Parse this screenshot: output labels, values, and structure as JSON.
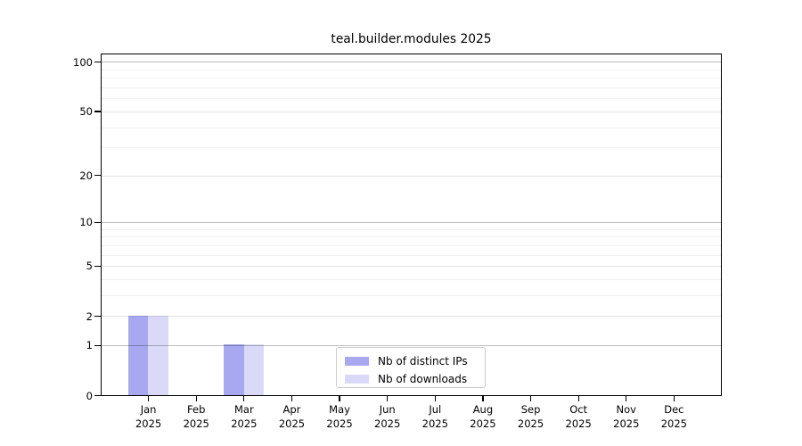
{
  "title": "teal.builder.modules 2025",
  "chart_data": {
    "type": "bar",
    "title": "teal.builder.modules 2025",
    "categories": [
      "Jan",
      "Feb",
      "Mar",
      "Apr",
      "May",
      "Jun",
      "Jul",
      "Aug",
      "Sep",
      "Oct",
      "Nov",
      "Dec"
    ],
    "category_year": "2025",
    "series": [
      {
        "name": "Nb of distinct IPs",
        "color": "#a8a8f0",
        "values": [
          2,
          0,
          1,
          0,
          0,
          0,
          0,
          0,
          0,
          0,
          0,
          0
        ]
      },
      {
        "name": "Nb of downloads",
        "color": "#dadaf8",
        "values": [
          2,
          0,
          1,
          0,
          0,
          0,
          0,
          0,
          0,
          0,
          0,
          0
        ]
      }
    ],
    "xlabel": "",
    "ylabel": "",
    "yscale": "log1p",
    "ylim": [
      0,
      100
    ],
    "yticks_labeled": [
      0,
      1,
      2,
      5,
      10,
      20,
      50,
      100
    ],
    "yticks_emphasized_grid": [
      1,
      10,
      100
    ],
    "yticks_minor": [
      3,
      4,
      6,
      7,
      8,
      9,
      30,
      40,
      60,
      70,
      80,
      90
    ],
    "grid": true,
    "legend_position": "lower-center-inside"
  }
}
